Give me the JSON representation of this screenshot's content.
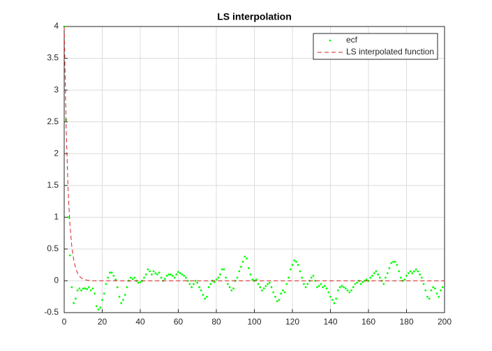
{
  "chart_data": {
    "type": "line",
    "title": "LS interpolation",
    "xlim": [
      0,
      200
    ],
    "xticks": [
      0,
      20,
      40,
      60,
      80,
      100,
      120,
      140,
      160,
      180,
      200
    ],
    "ylim": [
      -0.5,
      4
    ],
    "yticks": [
      -0.5,
      0,
      0.5,
      1,
      1.5,
      2,
      2.5,
      3,
      3.5,
      4
    ],
    "grid": true,
    "legend": "northeast",
    "series": [
      {
        "name": "ecf",
        "color": "#00ff00",
        "style": "markers",
        "x": [
          0,
          1,
          2,
          3,
          4,
          5,
          6,
          7,
          8,
          9,
          10,
          11,
          12,
          13,
          14,
          15,
          16,
          17,
          18,
          19,
          20,
          21,
          22,
          23,
          24,
          25,
          26,
          27,
          28,
          29,
          30,
          31,
          32,
          33,
          34,
          35,
          36,
          37,
          38,
          39,
          40,
          41,
          42,
          43,
          44,
          45,
          46,
          47,
          48,
          49,
          50,
          51,
          52,
          53,
          54,
          55,
          56,
          57,
          58,
          59,
          60,
          61,
          62,
          63,
          64,
          65,
          66,
          67,
          68,
          69,
          70,
          71,
          72,
          73,
          74,
          75,
          76,
          77,
          78,
          79,
          80,
          81,
          82,
          83,
          84,
          85,
          86,
          87,
          88,
          89,
          90,
          91,
          92,
          93,
          94,
          95,
          96,
          97,
          98,
          99,
          100,
          101,
          102,
          103,
          104,
          105,
          106,
          107,
          108,
          109,
          110,
          111,
          112,
          113,
          114,
          115,
          116,
          117,
          118,
          119,
          120,
          121,
          122,
          123,
          124,
          125,
          126,
          127,
          128,
          129,
          130,
          131,
          132,
          133,
          134,
          135,
          136,
          137,
          138,
          139,
          140,
          141,
          142,
          143,
          144,
          145,
          146,
          147,
          148,
          149,
          150,
          151,
          152,
          153,
          154,
          155,
          156,
          157,
          158,
          159,
          160,
          161,
          162,
          163,
          164,
          165,
          166,
          167,
          168,
          169,
          170,
          171,
          172,
          173,
          174,
          175,
          176,
          177,
          178,
          179,
          180,
          181,
          182,
          183,
          184,
          185,
          186,
          187,
          188,
          189,
          190,
          191,
          192,
          193,
          194,
          195,
          196,
          197,
          198,
          199
        ],
        "values": [
          4,
          2.53,
          1.0,
          0.4,
          -0.1,
          -0.35,
          -0.28,
          -0.15,
          -0.12,
          -0.15,
          -0.12,
          -0.12,
          -0.13,
          -0.1,
          -0.15,
          -0.12,
          -0.2,
          -0.4,
          -0.45,
          -0.42,
          -0.3,
          -0.2,
          -0.05,
          0.05,
          0.13,
          0.13,
          0.08,
          0.02,
          -0.1,
          -0.25,
          -0.35,
          -0.3,
          -0.22,
          -0.1,
          0,
          0.05,
          0.03,
          0.05,
          0,
          -0.03,
          -0.02,
          0,
          0.05,
          0.1,
          0.18,
          0.15,
          0.1,
          0.15,
          0.12,
          0.1,
          0.13,
          0.05,
          0,
          0.03,
          0.08,
          0.1,
          0.1,
          0.08,
          0.05,
          0.1,
          0.14,
          0.12,
          0.1,
          0.08,
          0.05,
          0,
          -0.05,
          -0.1,
          -0.05,
          0,
          -0.03,
          -0.1,
          -0.15,
          -0.22,
          -0.28,
          -0.25,
          -0.1,
          -0.05,
          0,
          -0.02,
          0.02,
          0.05,
          0.1,
          0.18,
          0.18,
          0.05,
          -0.05,
          -0.1,
          -0.15,
          -0.12,
          0,
          0.05,
          0.15,
          0.22,
          0.3,
          0.38,
          0.35,
          0.2,
          0.1,
          0.02,
          0,
          0.02,
          -0.05,
          -0.1,
          -0.15,
          -0.12,
          -0.08,
          -0.05,
          -0.03,
          -0.1,
          -0.18,
          -0.25,
          -0.32,
          -0.3,
          -0.2,
          -0.15,
          -0.18,
          -0.05,
          0.05,
          0.18,
          0.25,
          0.32,
          0.3,
          0.25,
          0.15,
          0.05,
          -0.05,
          -0.1,
          -0.05,
          0,
          0.05,
          0.08,
          0,
          -0.1,
          -0.08,
          -0.05,
          -0.1,
          -0.08,
          -0.12,
          -0.18,
          -0.25,
          -0.3,
          -0.35,
          -0.28,
          -0.15,
          -0.1,
          -0.08,
          -0.1,
          -0.12,
          -0.15,
          -0.18,
          -0.15,
          -0.1,
          -0.05,
          -0.03,
          0,
          -0.05,
          -0.02,
          0,
          0.02,
          0,
          0.05,
          0.08,
          0.12,
          0.15,
          0.1,
          0.05,
          0,
          -0.05,
          0.05,
          0.12,
          0.2,
          0.28,
          0.3,
          0.3,
          0.25,
          0.15,
          0.05,
          0,
          0.02,
          0.08,
          0.12,
          0.15,
          0.12,
          0.15,
          0.18,
          0.15,
          0.1,
          0.05,
          -0.05,
          -0.15,
          -0.25,
          -0.28,
          -0.15,
          -0.1,
          -0.12,
          -0.2,
          -0.25,
          -0.15,
          -0.1
        ]
      },
      {
        "name": "LS interpolated function",
        "color": "#d62020",
        "style": "dashed",
        "x": [
          0,
          1,
          2,
          3,
          4,
          5,
          6,
          7,
          8,
          9,
          10,
          12,
          15,
          20,
          200
        ],
        "values": [
          4,
          2.43,
          1.47,
          0.89,
          0.54,
          0.33,
          0.2,
          0.12,
          0.073,
          0.044,
          0.027,
          0.01,
          0.002,
          0,
          0
        ]
      }
    ]
  }
}
